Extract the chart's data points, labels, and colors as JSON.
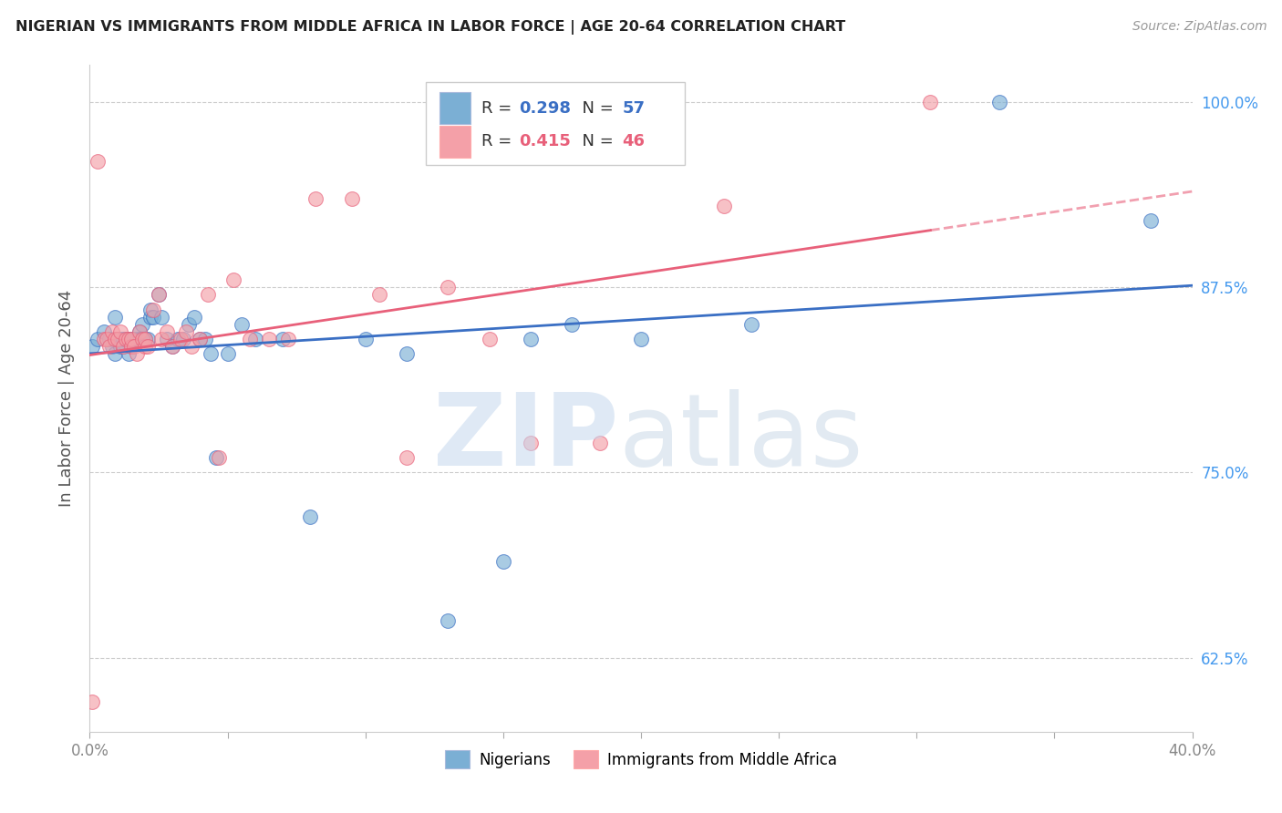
{
  "title": "NIGERIAN VS IMMIGRANTS FROM MIDDLE AFRICA IN LABOR FORCE | AGE 20-64 CORRELATION CHART",
  "source": "Source: ZipAtlas.com",
  "ylabel": "In Labor Force | Age 20-64",
  "xlim": [
    0.0,
    0.4
  ],
  "ylim": [
    0.575,
    1.025
  ],
  "xticks": [
    0.0,
    0.05,
    0.1,
    0.15,
    0.2,
    0.25,
    0.3,
    0.35,
    0.4
  ],
  "xticklabels": [
    "0.0%",
    "",
    "",
    "",
    "",
    "",
    "",
    "",
    "40.0%"
  ],
  "yticks": [
    0.625,
    0.75,
    0.875,
    1.0
  ],
  "yticklabels": [
    "62.5%",
    "75.0%",
    "87.5%",
    "100.0%"
  ],
  "blue_R": "0.298",
  "blue_N": "57",
  "pink_R": "0.415",
  "pink_N": "46",
  "blue_color": "#7BAFD4",
  "pink_color": "#F4A0A8",
  "blue_line_color": "#3A6FC4",
  "pink_line_color": "#E8607A",
  "grid_color": "#CCCCCC",
  "title_color": "#222222",
  "right_axis_color": "#4499EE",
  "blue_x": [
    0.001,
    0.003,
    0.005,
    0.007,
    0.008,
    0.009,
    0.009,
    0.01,
    0.011,
    0.011,
    0.012,
    0.012,
    0.013,
    0.013,
    0.014,
    0.014,
    0.015,
    0.015,
    0.016,
    0.016,
    0.017,
    0.018,
    0.018,
    0.019,
    0.019,
    0.02,
    0.021,
    0.022,
    0.022,
    0.023,
    0.025,
    0.026,
    0.028,
    0.03,
    0.032,
    0.034,
    0.036,
    0.038,
    0.04,
    0.042,
    0.044,
    0.046,
    0.05,
    0.055,
    0.06,
    0.07,
    0.08,
    0.1,
    0.115,
    0.13,
    0.15,
    0.16,
    0.175,
    0.2,
    0.24,
    0.33,
    0.385
  ],
  "blue_y": [
    0.835,
    0.84,
    0.845,
    0.84,
    0.835,
    0.855,
    0.83,
    0.84,
    0.84,
    0.835,
    0.84,
    0.835,
    0.84,
    0.84,
    0.84,
    0.83,
    0.84,
    0.835,
    0.84,
    0.84,
    0.84,
    0.845,
    0.84,
    0.85,
    0.84,
    0.84,
    0.84,
    0.855,
    0.86,
    0.855,
    0.87,
    0.855,
    0.84,
    0.835,
    0.84,
    0.84,
    0.85,
    0.855,
    0.84,
    0.84,
    0.83,
    0.76,
    0.83,
    0.85,
    0.84,
    0.84,
    0.72,
    0.84,
    0.83,
    0.65,
    0.69,
    0.84,
    0.85,
    0.84,
    0.85,
    1.0,
    0.92
  ],
  "pink_x": [
    0.001,
    0.003,
    0.005,
    0.006,
    0.007,
    0.008,
    0.009,
    0.01,
    0.011,
    0.012,
    0.013,
    0.014,
    0.015,
    0.015,
    0.016,
    0.017,
    0.018,
    0.019,
    0.02,
    0.02,
    0.021,
    0.023,
    0.025,
    0.026,
    0.028,
    0.03,
    0.033,
    0.035,
    0.037,
    0.04,
    0.043,
    0.047,
    0.052,
    0.058,
    0.065,
    0.072,
    0.082,
    0.095,
    0.105,
    0.115,
    0.13,
    0.145,
    0.16,
    0.185,
    0.23,
    0.305
  ],
  "pink_y": [
    0.595,
    0.96,
    0.84,
    0.84,
    0.835,
    0.845,
    0.84,
    0.84,
    0.845,
    0.835,
    0.84,
    0.84,
    0.835,
    0.84,
    0.835,
    0.83,
    0.845,
    0.84,
    0.835,
    0.84,
    0.835,
    0.86,
    0.87,
    0.84,
    0.845,
    0.835,
    0.84,
    0.845,
    0.835,
    0.84,
    0.87,
    0.76,
    0.88,
    0.84,
    0.84,
    0.84,
    0.935,
    0.935,
    0.87,
    0.76,
    0.875,
    0.84,
    0.77,
    0.77,
    0.93,
    1.0
  ]
}
